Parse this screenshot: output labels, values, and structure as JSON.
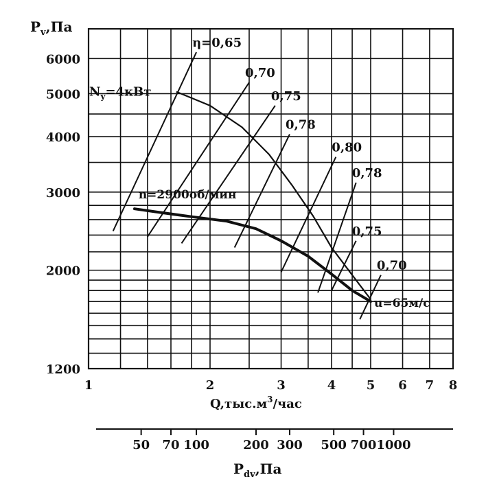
{
  "chart_data": {
    "type": "line",
    "title": "",
    "ylabel_main": "P",
    "ylabel_sub": "v",
    "ylabel_unit": ",Па",
    "xlabel": "Q,тыс.м",
    "xlabel_sup": "3",
    "xlabel_unit": "/час",
    "x2label_main": "P",
    "x2label_sub": "dv",
    "x2label_unit": ",Па",
    "x_scale": "log",
    "y_scale": "log",
    "xlim": [
      1,
      8
    ],
    "ylim": [
      1200,
      7000
    ],
    "x_ticks": [
      1,
      2,
      3,
      4,
      5,
      6,
      7,
      8
    ],
    "y_ticks": [
      1200,
      2000,
      3000,
      4000,
      5000,
      6000
    ],
    "x_grid": [
      1.2,
      1.4,
      1.6,
      1.8,
      2,
      2.5,
      3,
      3.5,
      4,
      4.5,
      5,
      6,
      7,
      8
    ],
    "y_grid": [
      1300,
      1400,
      1500,
      1600,
      1700,
      1800,
      1900,
      2000,
      2200,
      2400,
      2600,
      2800,
      3000,
      3500,
      4000,
      4500,
      5000,
      6000
    ],
    "pdv_ticks": [
      50,
      70,
      100,
      200,
      300,
      500,
      700,
      1000
    ],
    "pdv_scale_x": [
      1.35,
      1.6,
      1.85,
      2.6,
      3.15,
      4.05,
      4.8,
      5.7
    ],
    "series": [
      {
        "name": "n=2900об/мин",
        "x": [
          1.3,
          1.5,
          1.8,
          2.2,
          2.6,
          3.0,
          3.5,
          4.0,
          4.5,
          5.0
        ],
        "y": [
          2750,
          2700,
          2640,
          2580,
          2480,
          2330,
          2150,
          1960,
          1800,
          1700
        ]
      },
      {
        "name": "Ny=4кВт",
        "x": [
          1.65,
          2.0,
          2.4,
          2.8,
          3.2,
          3.6,
          4.0,
          4.5,
          5.0
        ],
        "y": [
          5050,
          4700,
          4200,
          3650,
          3100,
          2650,
          2250,
          1950,
          1720
        ]
      }
    ],
    "efficiency_lines": [
      {
        "label": "η=0,65",
        "x1": 1.15,
        "y1": 2450,
        "x2": 1.85,
        "y2": 6200
      },
      {
        "label": "0,70",
        "x1": 1.4,
        "y1": 2380,
        "x2": 2.5,
        "y2": 5300
      },
      {
        "label": "0,75",
        "x1": 1.7,
        "y1": 2300,
        "x2": 2.9,
        "y2": 4700
      },
      {
        "label": "0,78",
        "x1": 2.3,
        "y1": 2250,
        "x2": 3.15,
        "y2": 4050
      },
      {
        "label": "0,80",
        "x1": 3.0,
        "y1": 1980,
        "x2": 4.1,
        "y2": 3600
      },
      {
        "label": "0,78",
        "x1": 3.7,
        "y1": 1780,
        "x2": 4.6,
        "y2": 3150
      },
      {
        "label": "0,75",
        "x1": 4.0,
        "y1": 1800,
        "x2": 4.6,
        "y2": 2330
      },
      {
        "label": "0,70",
        "x1": 4.7,
        "y1": 1550,
        "x2": 5.3,
        "y2": 1950
      }
    ],
    "eta_labels": [
      "η=0,65",
      "0,70",
      "0,75",
      "0,78",
      "0,80",
      "0,78",
      "0,75",
      "0,70"
    ],
    "annotations": {
      "power_main": "N",
      "power_sub": "y",
      "power_rest": "=4кВт",
      "speed": "n=2900об/мин",
      "velocity": "u=65м/с"
    },
    "grid": true
  }
}
